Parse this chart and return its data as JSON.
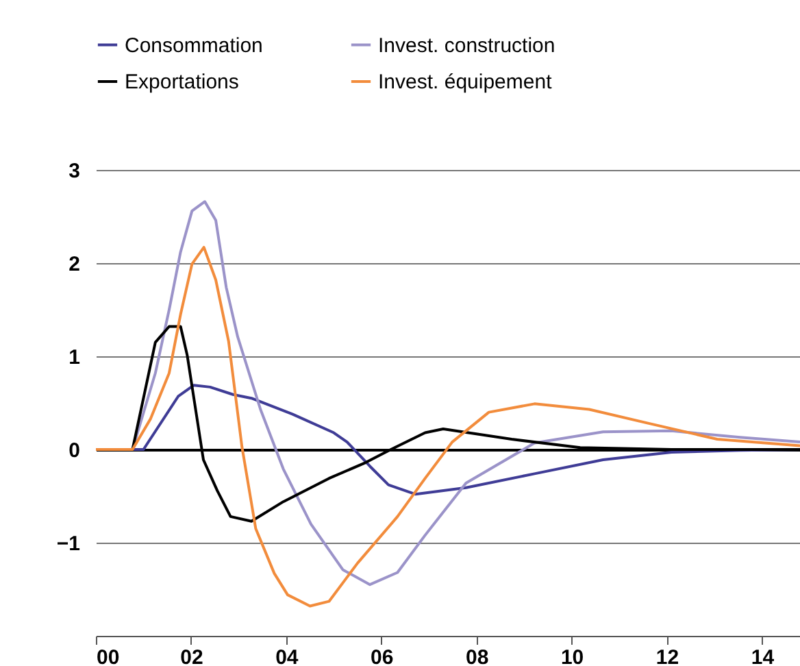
{
  "chart_data": {
    "type": "line",
    "xlim": [
      0,
      14.8
    ],
    "xticks": [
      {
        "value": 0,
        "label": "00"
      },
      {
        "value": 2,
        "label": "02"
      },
      {
        "value": 4,
        "label": "04"
      },
      {
        "value": 6,
        "label": "06"
      },
      {
        "value": 8,
        "label": "08"
      },
      {
        "value": 10,
        "label": "10"
      },
      {
        "value": 12,
        "label": "12"
      },
      {
        "value": 14,
        "label": "14"
      }
    ],
    "ylim": [
      -2,
      3
    ],
    "yticks": [
      {
        "value": -1,
        "label": "−1"
      },
      0,
      1,
      2,
      3
    ],
    "grid": "y",
    "legend": "top",
    "line_style": "solid",
    "marker": "none",
    "series": [
      {
        "name": "Consommation",
        "color": "#3f3c96",
        "x": [
          0,
          1.0,
          1.73,
          2.06,
          2.4,
          2.88,
          3.27,
          4.13,
          5.0,
          5.28,
          5.76,
          6.15,
          6.72,
          7.78,
          9.22,
          10.66,
          12.1,
          13.54,
          14.8
        ],
        "values": [
          0,
          0,
          0.57,
          0.69,
          0.67,
          0.59,
          0.55,
          0.38,
          0.18,
          0.08,
          -0.18,
          -0.38,
          -0.48,
          -0.41,
          -0.26,
          -0.11,
          -0.03,
          -0.01,
          0
        ]
      },
      {
        "name": "Invest. construction",
        "color": "#9b93c9",
        "x": [
          0,
          0.77,
          1.25,
          1.54,
          1.78,
          2.02,
          2.29,
          2.52,
          2.74,
          2.98,
          3.46,
          3.94,
          4.52,
          5.19,
          5.76,
          6.34,
          6.92,
          7.78,
          9.22,
          10.66,
          12.1,
          13.54,
          14.8
        ],
        "values": [
          0,
          0,
          0.82,
          1.5,
          2.12,
          2.56,
          2.66,
          2.46,
          1.74,
          1.21,
          0.43,
          -0.21,
          -0.8,
          -1.29,
          -1.45,
          -1.32,
          -0.92,
          -0.36,
          0.07,
          0.19,
          0.2,
          0.13,
          0.08
        ]
      },
      {
        "name": "Exportations",
        "color": "#000000",
        "x": [
          0,
          0.77,
          1.25,
          1.54,
          1.78,
          1.92,
          2.26,
          2.55,
          2.83,
          3.27,
          3.94,
          4.9,
          5.67,
          6.2,
          6.92,
          7.3,
          8.74,
          10.18,
          12.1,
          14.8
        ],
        "values": [
          0,
          0,
          1.15,
          1.32,
          1.32,
          1.01,
          -0.11,
          -0.44,
          -0.72,
          -0.77,
          -0.56,
          -0.31,
          -0.14,
          0,
          0.18,
          0.22,
          0.11,
          0.02,
          0,
          0
        ]
      },
      {
        "name": "Invest. équipement",
        "color": "#f28c3c",
        "x": [
          0,
          0.77,
          1.15,
          1.54,
          1.78,
          2.02,
          2.27,
          2.52,
          2.79,
          3.07,
          3.36,
          3.75,
          4.03,
          4.5,
          4.9,
          5.5,
          6.34,
          6.92,
          7.49,
          8.26,
          9.22,
          10.37,
          11.62,
          13.06,
          14.8
        ],
        "values": [
          0,
          0,
          0.33,
          0.82,
          1.45,
          1.99,
          2.17,
          1.82,
          1.16,
          0.03,
          -0.85,
          -1.33,
          -1.56,
          -1.68,
          -1.63,
          -1.22,
          -0.72,
          -0.31,
          0.08,
          0.4,
          0.49,
          0.43,
          0.28,
          0.11,
          0.04
        ]
      }
    ]
  }
}
